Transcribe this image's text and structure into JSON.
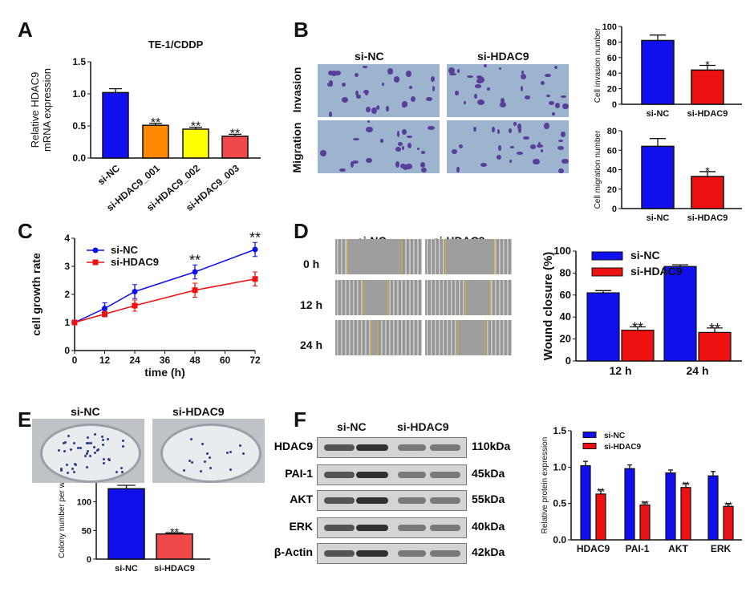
{
  "panels": {
    "a": "A",
    "b": "B",
    "c": "C",
    "d": "D",
    "e": "E",
    "f": "F"
  },
  "groups": {
    "nc": "si-NC",
    "hdac9": "si-HDAC9"
  },
  "colors": {
    "blue": "#1010ee",
    "red": "#ee1111",
    "orange": "#ff8800",
    "yellow": "#ffff00",
    "salmon": "#f04848"
  },
  "panel_b": {
    "rows": [
      "Invasion",
      "Migration"
    ]
  },
  "panel_d": {
    "rows": [
      "0 h",
      "12 h",
      "24 h"
    ]
  },
  "panel_f": {
    "proteins": [
      "HDAC9",
      "PAI-1",
      "AKT",
      "ERK",
      "β-Actin"
    ],
    "sizes": [
      "110kDa",
      "45kDa",
      "55kDa",
      "40kDa",
      "42kDa"
    ]
  },
  "chart_data": [
    {
      "id": "A",
      "type": "bar",
      "title": "TE-1/CDDP",
      "ylabel": "Relative HDAC9 mRNA expression",
      "ylim": [
        0,
        1.5
      ],
      "yticks": [
        "0.0",
        "0.5",
        "1.0",
        "1.5"
      ],
      "categories": [
        "si-NC",
        "si-HDAC9_001",
        "si-HDAC9_002",
        "si-HDAC9_003"
      ],
      "values": [
        1.02,
        0.51,
        0.45,
        0.34
      ],
      "errors": [
        0.06,
        0.03,
        0.03,
        0.03
      ],
      "annotations": [
        "",
        "**",
        "**",
        "**"
      ],
      "bar_colors": [
        "#1010ee",
        "#ff8800",
        "#ffff00",
        "#f04848"
      ]
    },
    {
      "id": "B-invasion",
      "type": "bar",
      "ylabel": "Cell invasion number",
      "ylim": [
        0,
        100
      ],
      "yticks": [
        "0",
        "20",
        "40",
        "60",
        "80",
        "100"
      ],
      "categories": [
        "si-NC",
        "si-HDAC9"
      ],
      "values": [
        82,
        44
      ],
      "errors": [
        7,
        6
      ],
      "annotations": [
        "",
        "*"
      ],
      "bar_colors": [
        "#1010ee",
        "#ee1111"
      ]
    },
    {
      "id": "B-migration",
      "type": "bar",
      "ylabel": "Cell migration number",
      "ylim": [
        0,
        80
      ],
      "yticks": [
        "0",
        "20",
        "40",
        "60",
        "80"
      ],
      "categories": [
        "si-NC",
        "si-HDAC9"
      ],
      "values": [
        64,
        33
      ],
      "errors": [
        8,
        5
      ],
      "annotations": [
        "",
        "*"
      ],
      "bar_colors": [
        "#1010ee",
        "#ee1111"
      ]
    },
    {
      "id": "C",
      "type": "line",
      "xlabel": "time (h)",
      "ylabel": "cell growth rate",
      "xlim": [
        0,
        72
      ],
      "ylim": [
        0,
        4
      ],
      "xticks": [
        "0",
        "12",
        "24",
        "36",
        "48",
        "60",
        "72"
      ],
      "yticks": [
        "0",
        "1",
        "2",
        "3",
        "4"
      ],
      "legend": "top-left",
      "x": [
        0,
        12,
        24,
        48,
        72
      ],
      "series": [
        {
          "name": "si-NC",
          "color": "#1010ee",
          "values": [
            1.0,
            1.5,
            2.1,
            2.8,
            3.6
          ],
          "errors": [
            0.05,
            0.2,
            0.25,
            0.25,
            0.25
          ]
        },
        {
          "name": "si-HDAC9",
          "color": "#ee1111",
          "values": [
            1.0,
            1.3,
            1.6,
            2.15,
            2.55
          ],
          "errors": [
            0.05,
            0.1,
            0.2,
            0.25,
            0.25
          ]
        }
      ],
      "annotations": [
        {
          "x": 48,
          "text": "**"
        },
        {
          "x": 72,
          "text": "**"
        }
      ]
    },
    {
      "id": "D",
      "type": "bar",
      "ylabel": "Wound closure (%)",
      "ylim": [
        0,
        100
      ],
      "yticks": [
        "0",
        "20",
        "40",
        "60",
        "80",
        "100"
      ],
      "legend": "top-left",
      "categories": [
        "12 h",
        "24 h"
      ],
      "series": [
        {
          "name": "si-NC",
          "color": "#1010ee",
          "values": [
            62,
            86
          ],
          "errors": [
            2,
            1.5
          ]
        },
        {
          "name": "si-HDAC9",
          "color": "#ee1111",
          "values": [
            28,
            26
          ],
          "errors": [
            3,
            4
          ]
        }
      ],
      "annotations": [
        "**",
        "**"
      ]
    },
    {
      "id": "E",
      "type": "bar",
      "ylabel": "Colony number per well",
      "ylim": [
        0,
        150
      ],
      "yticks": [
        "0",
        "50",
        "100"
      ],
      "categories": [
        "si-NC",
        "si-HDAC9"
      ],
      "values": [
        123,
        44
      ],
      "errors": [
        6,
        2
      ],
      "annotations": [
        "",
        "**"
      ],
      "bar_colors": [
        "#1010ee",
        "#f04848"
      ]
    },
    {
      "id": "F",
      "type": "bar",
      "ylabel": "Relative protein expression",
      "ylim": [
        0,
        1.5
      ],
      "yticks": [
        "0.0",
        "0.5",
        "1.0",
        "1.5"
      ],
      "legend": "top-left",
      "categories": [
        "HDAC9",
        "PAI-1",
        "AKT",
        "ERK"
      ],
      "series": [
        {
          "name": "si-NC",
          "color": "#1010ee",
          "values": [
            1.02,
            0.98,
            0.92,
            0.88
          ],
          "errors": [
            0.06,
            0.05,
            0.04,
            0.06
          ]
        },
        {
          "name": "si-HDAC9",
          "color": "#ee1111",
          "values": [
            0.63,
            0.48,
            0.72,
            0.46
          ],
          "errors": [
            0.06,
            0.04,
            0.06,
            0.04
          ]
        }
      ],
      "annotations": [
        "**",
        "**",
        "**",
        "**"
      ]
    }
  ]
}
